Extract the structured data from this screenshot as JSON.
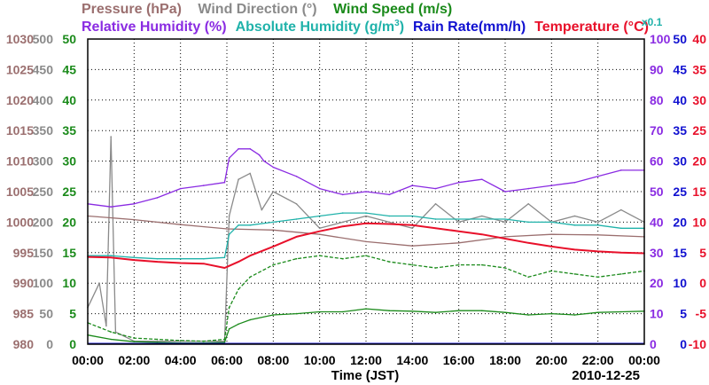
{
  "chart_data": {
    "type": "line",
    "date_label": "2010-12-25",
    "xlabel": "Time (JST)",
    "x_ticks": [
      "00:00",
      "02:00",
      "04:00",
      "06:00",
      "08:00",
      "10:00",
      "12:00",
      "14:00",
      "16:00",
      "18:00",
      "20:00",
      "22:00",
      "00:00"
    ],
    "x_range_hours": [
      0,
      24
    ],
    "colors": {
      "pressure": "#9b6f6f",
      "wind_direction": "#8a8a8a",
      "wind_speed": "#1a8a1a",
      "relative_humidity": "#8a2be2",
      "absolute_humidity": "#20b2aa",
      "rain_rate": "#1010d0",
      "temperature": "#e8102a"
    },
    "legend": {
      "pressure": "Pressure (hPa)",
      "wind_direction": "Wind Direction (°)",
      "wind_speed": "Wind Speed (m/s)",
      "relative_humidity": "Relative Humidity (%)",
      "absolute_humidity": "Absolute Humidity (g/m",
      "absolute_humidity_sup": "3",
      "absolute_humidity_close": ")",
      "rain_rate": "Rain Rate(mm/h)",
      "temperature": "Temperature (°C)",
      "scale_note": "x0.1"
    },
    "axes": {
      "pressure": {
        "ticks": [
          "1030",
          "1025",
          "1020",
          "1015",
          "1010",
          "1005",
          "1000",
          "995",
          "990",
          "985",
          "980"
        ],
        "range": [
          980,
          1030
        ]
      },
      "wind_direction": {
        "ticks": [
          "500",
          "450",
          "400",
          "350",
          "300",
          "250",
          "200",
          "150",
          "100",
          "50",
          "0"
        ],
        "range": [
          0,
          500
        ]
      },
      "relative_humidity": {
        "ticks": [
          "100",
          "90",
          "80",
          "70",
          "60",
          "50",
          "40",
          "30",
          "20",
          "10",
          "0"
        ],
        "range": [
          0,
          100
        ]
      },
      "rain_rate": {
        "ticks": [
          "50",
          "45",
          "40",
          "35",
          "30",
          "25",
          "20",
          "15",
          "10",
          "5",
          "0"
        ],
        "range": [
          0,
          50
        ]
      },
      "temperature": {
        "ticks": [
          "40",
          "35",
          "30",
          "25",
          "20",
          "15",
          "10",
          "5",
          "0",
          "-5",
          "-10"
        ],
        "range": [
          -10,
          40
        ]
      }
    },
    "series": [
      {
        "name": "Relative Humidity",
        "key": "relative_humidity",
        "unit": "%",
        "x": [
          0,
          1,
          2,
          3,
          4,
          5,
          5.9,
          6.1,
          6.5,
          7.0,
          7.4,
          7.6,
          8,
          9,
          10,
          11,
          12,
          13,
          14,
          15,
          16,
          17,
          18,
          19,
          20,
          21,
          22,
          23,
          24
        ],
        "values": [
          46,
          45,
          46,
          48,
          51,
          52,
          53,
          61,
          64,
          64,
          62,
          60,
          58,
          55,
          51,
          49,
          50,
          49,
          52,
          51,
          53,
          54,
          50,
          51,
          52,
          53,
          55,
          57,
          57
        ]
      },
      {
        "name": "Pressure",
        "key": "pressure",
        "unit": "hPa",
        "x": [
          0,
          2,
          4,
          6,
          8,
          10,
          12,
          14,
          16,
          18,
          20,
          22,
          24
        ],
        "values": [
          1001.0,
          1000.4,
          999.6,
          998.9,
          998.7,
          998.0,
          996.8,
          996.1,
          996.6,
          997.6,
          998.0,
          997.9,
          997.6
        ]
      },
      {
        "name": "Absolute Humidity",
        "key": "absolute_humidity",
        "unit": "g/m3 x0.1",
        "x": [
          0,
          1,
          2,
          3,
          4,
          5,
          5.9,
          6.1,
          6.5,
          7,
          8,
          9,
          10,
          11,
          12,
          13,
          14,
          15,
          16,
          17,
          18,
          19,
          20,
          21,
          22,
          23,
          24
        ],
        "values": [
          14.5,
          14.5,
          14.2,
          14.0,
          14.0,
          14.0,
          14.2,
          18.0,
          19.5,
          19.5,
          20.0,
          20.5,
          21.0,
          21.5,
          21.5,
          21.0,
          21.0,
          20.5,
          20.5,
          20.5,
          20.5,
          20.0,
          20.0,
          19.5,
          19.5,
          19.0,
          19.0
        ]
      },
      {
        "name": "Temperature",
        "key": "temperature",
        "unit": "°C",
        "x": [
          0,
          1,
          2,
          3,
          4,
          5,
          5.9,
          6.5,
          7,
          8,
          9,
          10,
          11,
          12,
          13,
          14,
          15,
          16,
          17,
          18,
          19,
          20,
          21,
          22,
          23,
          24
        ],
        "values": [
          4.3,
          4.2,
          3.8,
          3.5,
          3.3,
          3.2,
          2.5,
          3.5,
          4.5,
          6.0,
          7.6,
          8.5,
          9.3,
          9.8,
          9.7,
          9.5,
          9.0,
          8.5,
          8.0,
          7.3,
          6.6,
          6.0,
          5.5,
          5.2,
          5.0,
          4.9
        ]
      },
      {
        "name": "Wind Speed (avg)",
        "key": "wind_speed",
        "unit": "m/s",
        "x": [
          0,
          1,
          2,
          3,
          4,
          5,
          5.9,
          6.1,
          6.5,
          7,
          8,
          9,
          10,
          11,
          12,
          13,
          14,
          15,
          16,
          17,
          18,
          19,
          20,
          21,
          22,
          23,
          24
        ],
        "values": [
          1.5,
          0.8,
          0.4,
          0.3,
          0.2,
          0.2,
          0.3,
          2.5,
          3.3,
          4.0,
          4.8,
          5.0,
          5.3,
          5.3,
          5.8,
          5.5,
          5.4,
          5.2,
          5.5,
          5.5,
          5.2,
          4.8,
          5.0,
          4.8,
          5.2,
          5.3,
          5.4
        ]
      },
      {
        "name": "Wind Speed (gust)",
        "key": "wind_speed",
        "dashed": true,
        "unit": "m/s",
        "x": [
          0,
          1,
          2,
          3,
          4,
          5,
          5.9,
          6.1,
          6.5,
          7,
          8,
          9,
          10,
          11,
          12,
          13,
          14,
          15,
          16,
          17,
          18,
          19,
          20,
          21,
          22,
          23,
          24
        ],
        "values": [
          3.5,
          2.0,
          1.0,
          0.8,
          0.6,
          0.5,
          0.8,
          6.0,
          9.0,
          11.0,
          13.0,
          14.0,
          14.5,
          14.0,
          14.5,
          13.5,
          13.0,
          12.5,
          13.0,
          13.0,
          12.5,
          11.0,
          12.0,
          11.5,
          11.0,
          11.5,
          12.0
        ]
      },
      {
        "name": "Wind Direction",
        "key": "wind_direction",
        "unit": "°",
        "x": [
          0,
          0.5,
          0.8,
          1.0,
          1.2,
          2,
          3,
          4,
          5,
          5.9,
          6.1,
          6.5,
          7,
          7.5,
          8,
          9,
          10,
          11,
          12,
          13,
          14,
          15,
          16,
          17,
          18,
          19,
          20,
          21,
          22,
          23,
          24
        ],
        "values": [
          60,
          100,
          30,
          340,
          20,
          5,
          5,
          5,
          5,
          5,
          210,
          270,
          280,
          220,
          250,
          230,
          190,
          200,
          210,
          200,
          190,
          230,
          200,
          210,
          200,
          230,
          200,
          210,
          200,
          220,
          200
        ]
      }
    ]
  }
}
